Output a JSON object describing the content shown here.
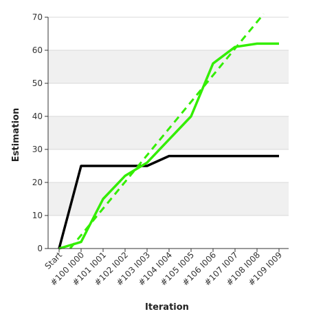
{
  "chart_data": {
    "type": "line",
    "title": "",
    "xlabel": "Iteration",
    "ylabel": "Estimation",
    "categories": [
      "Start",
      "#100 I000",
      "#101 I001",
      "#102 I002",
      "#103 I003",
      "#104 I004",
      "#105 I005",
      "#106 I006",
      "#107 I007",
      "#108 I008",
      "#109 I009"
    ],
    "ylim": [
      0,
      70
    ],
    "yticks": [
      0,
      10,
      20,
      30,
      40,
      50,
      60,
      70
    ],
    "grid": "horizontal bands",
    "legend": "none",
    "series": [
      {
        "id": "black",
        "color": "#000000",
        "dashed": false,
        "values": [
          0,
          25,
          25,
          25,
          25,
          28,
          28,
          28,
          28,
          28,
          28
        ]
      },
      {
        "id": "green",
        "color": "#33ee00",
        "dashed": false,
        "values": [
          0,
          2,
          15,
          22,
          26,
          33,
          40,
          56,
          61,
          62,
          62
        ]
      },
      {
        "id": "green-trend",
        "color": "#33ee00",
        "dashed": true,
        "x": [
          0.5,
          9.3
        ],
        "values": [
          0,
          71
        ]
      }
    ],
    "colors": {
      "band": "#f0f0f0",
      "gridline": "#d9d9d9",
      "axis": "#333333"
    }
  }
}
